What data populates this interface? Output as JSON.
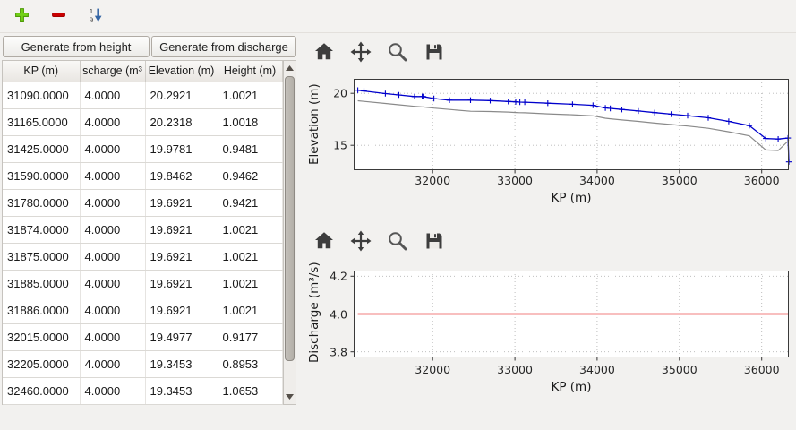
{
  "main_toolbar": {
    "tools": [
      {
        "name": "add-row",
        "icon": "plus-icon"
      },
      {
        "name": "remove-row",
        "icon": "minus-icon"
      },
      {
        "name": "sort-rows",
        "icon": "sort-numeric-icon"
      }
    ]
  },
  "left": {
    "generate_from_height": "Generate from height",
    "generate_from_discharge": "Generate from discharge",
    "table": {
      "columns": [
        "KP (m)",
        "scharge (m³",
        "Elevation (m)",
        "Height (m)"
      ],
      "rows": [
        [
          "31090.0000",
          "4.0000",
          "20.2921",
          "1.0021"
        ],
        [
          "31165.0000",
          "4.0000",
          "20.2318",
          "1.0018"
        ],
        [
          "31425.0000",
          "4.0000",
          "19.9781",
          "0.9481"
        ],
        [
          "31590.0000",
          "4.0000",
          "19.8462",
          "0.9462"
        ],
        [
          "31780.0000",
          "4.0000",
          "19.6921",
          "0.9421"
        ],
        [
          "31874.0000",
          "4.0000",
          "19.6921",
          "1.0021"
        ],
        [
          "31875.0000",
          "4.0000",
          "19.6921",
          "1.0021"
        ],
        [
          "31885.0000",
          "4.0000",
          "19.6921",
          "1.0021"
        ],
        [
          "31886.0000",
          "4.0000",
          "19.6921",
          "1.0021"
        ],
        [
          "32015.0000",
          "4.0000",
          "19.4977",
          "0.9177"
        ],
        [
          "32205.0000",
          "4.0000",
          "19.3453",
          "0.8953"
        ],
        [
          "32460.0000",
          "4.0000",
          "19.3453",
          "1.0653"
        ]
      ]
    }
  },
  "plot_toolbar_icons": [
    "home-icon",
    "pan-icon",
    "zoom-icon",
    "save-icon"
  ],
  "chart_data": [
    {
      "type": "line",
      "title": "",
      "xlabel": "KP (m)",
      "ylabel": "Elevation (m)",
      "xlim": [
        31040,
        36330
      ],
      "ylim": [
        12.6,
        21.4
      ],
      "grid": true,
      "legend": "none",
      "xticks": [
        {
          "v": 32000,
          "label": "32000"
        },
        {
          "v": 33000,
          "label": "33000"
        },
        {
          "v": 34000,
          "label": "34000"
        },
        {
          "v": 35000,
          "label": "35000"
        },
        {
          "v": 36000,
          "label": "36000"
        }
      ],
      "yticks": [
        {
          "v": 15,
          "label": "15"
        },
        {
          "v": 20,
          "label": "20"
        }
      ],
      "series": [
        {
          "name": "water-elevation",
          "color": "#0000cc",
          "marker": "+",
          "width": 1.3,
          "x": [
            31090,
            31165,
            31425,
            31590,
            31780,
            31874,
            31886,
            32015,
            32205,
            32460,
            32700,
            32920,
            33010,
            33060,
            33120,
            33400,
            33700,
            33950,
            34100,
            34160,
            34300,
            34500,
            34700,
            34900,
            35100,
            35350,
            35600,
            35850,
            36050,
            36200,
            36320,
            36330
          ],
          "y": [
            20.3,
            20.23,
            19.98,
            19.85,
            19.69,
            19.69,
            19.69,
            19.5,
            19.35,
            19.35,
            19.3,
            19.22,
            19.18,
            19.16,
            19.15,
            19.05,
            18.95,
            18.85,
            18.6,
            18.55,
            18.45,
            18.3,
            18.15,
            18.0,
            17.85,
            17.65,
            17.3,
            16.9,
            15.65,
            15.6,
            15.7,
            13.4
          ]
        },
        {
          "name": "bottom-elevation",
          "color": "#8a8a8a",
          "marker": null,
          "width": 1.2,
          "x": [
            31090,
            31165,
            31425,
            31590,
            31780,
            31874,
            31886,
            32015,
            32205,
            32460,
            32700,
            32920,
            33010,
            33060,
            33120,
            33400,
            33700,
            33950,
            34100,
            34160,
            34300,
            34500,
            34700,
            34900,
            35100,
            35350,
            35600,
            35850,
            36050,
            36200,
            36320,
            36330
          ],
          "y": [
            19.29,
            19.23,
            19.03,
            18.9,
            18.75,
            18.69,
            18.69,
            18.58,
            18.45,
            18.28,
            18.25,
            18.2,
            18.16,
            18.14,
            18.13,
            18.03,
            17.94,
            17.84,
            17.6,
            17.55,
            17.44,
            17.3,
            17.14,
            17.0,
            16.85,
            16.64,
            16.3,
            15.9,
            14.55,
            14.5,
            15.4,
            15.5
          ]
        }
      ]
    },
    {
      "type": "line",
      "title": "",
      "xlabel": "KP (m)",
      "ylabel": "Discharge (m³/s)",
      "xlim": [
        31040,
        36330
      ],
      "ylim": [
        3.77,
        4.23
      ],
      "grid": true,
      "legend": "none",
      "xticks": [
        {
          "v": 32000,
          "label": "32000"
        },
        {
          "v": 33000,
          "label": "33000"
        },
        {
          "v": 34000,
          "label": "34000"
        },
        {
          "v": 35000,
          "label": "35000"
        },
        {
          "v": 36000,
          "label": "36000"
        }
      ],
      "yticks": [
        {
          "v": 3.8,
          "label": "3.8"
        },
        {
          "v": 4.0,
          "label": "4.0"
        },
        {
          "v": 4.2,
          "label": "4.2"
        }
      ],
      "series": [
        {
          "name": "discharge",
          "color": "#e50000",
          "marker": null,
          "width": 1.4,
          "x": [
            31090,
            36330
          ],
          "y": [
            4.0,
            4.0
          ]
        }
      ]
    }
  ]
}
